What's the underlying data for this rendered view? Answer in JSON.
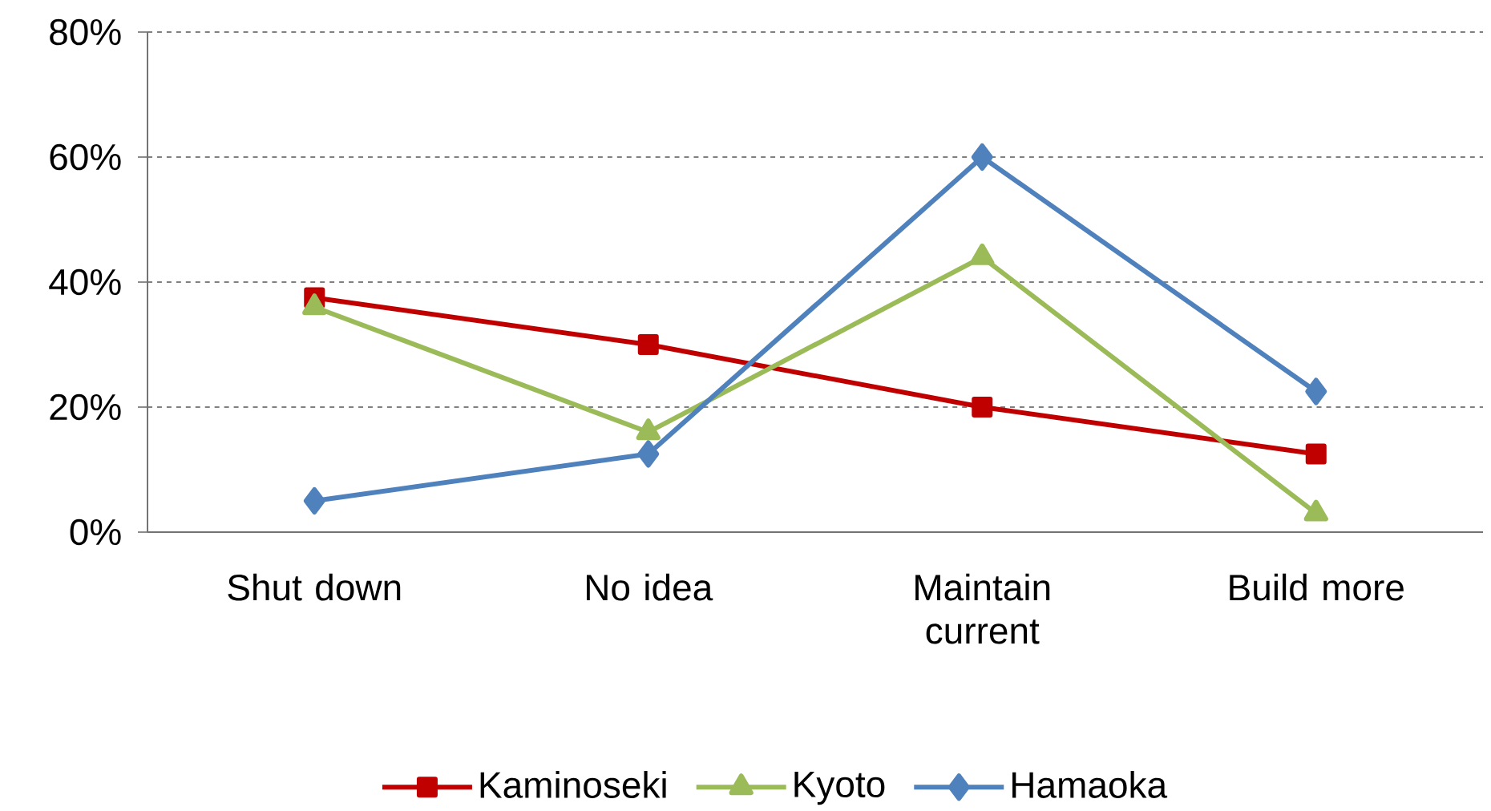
{
  "chart_data": {
    "type": "line",
    "categories": [
      "Shut down",
      "No idea",
      "Maintain current",
      "Build more"
    ],
    "series": [
      {
        "name": "Kaminoseki",
        "color": "#c00000",
        "marker": "square",
        "values": [
          37.5,
          30,
          20,
          12.5
        ]
      },
      {
        "name": "Kyoto",
        "color": "#9bbb59",
        "marker": "triangle",
        "values": [
          36,
          16,
          44,
          3
        ]
      },
      {
        "name": "Hamaoka",
        "color": "#4f81bd",
        "marker": "diamond",
        "values": [
          5,
          12.5,
          60,
          22.5
        ]
      }
    ],
    "ylim": [
      0,
      80
    ],
    "yticks": [
      {
        "value": 0,
        "label": "0%"
      },
      {
        "value": 20,
        "label": "20%"
      },
      {
        "value": 40,
        "label": "40%"
      },
      {
        "value": 60,
        "label": "60%"
      },
      {
        "value": 80,
        "label": "80%"
      }
    ],
    "grid": "y",
    "legend": "bottom",
    "line_style": "solid"
  }
}
